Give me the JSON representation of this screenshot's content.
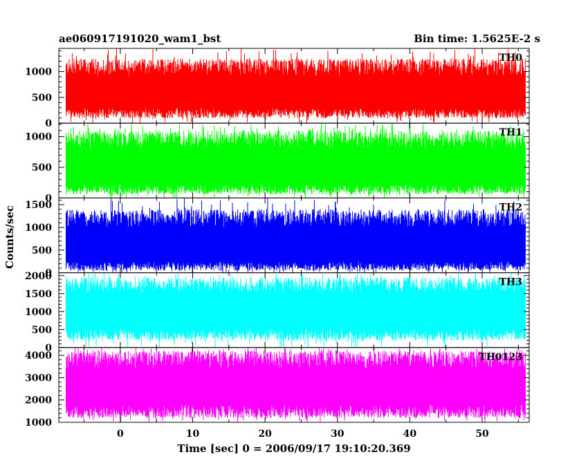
{
  "chart_data": {
    "type": "line",
    "title": "ae060917191020_wam1_bst",
    "subtitle": "Bin time: 1.5625E-2 s",
    "xlabel": "Time [sec] 0 = 2006/09/17 19:10:20.369",
    "ylabel": "Counts/sec",
    "xlim": [
      -8.5,
      56.5
    ],
    "x_ticks": [
      0,
      10,
      20,
      30,
      40,
      50
    ],
    "x_tick_labels": [
      "0",
      "10",
      "20",
      "30",
      "40",
      "50"
    ],
    "data_x_range": [
      -7.5,
      56
    ],
    "bin_time": 0.015625,
    "grid": false,
    "series": [
      {
        "name": "TH0",
        "color": "#ff0000",
        "ylim": [
          0,
          1450
        ],
        "y_ticks": [
          0,
          500,
          1000
        ],
        "y_tick_labels": [
          "0",
          "500",
          "1000"
        ],
        "base_typical": [
          100,
          300
        ],
        "base_min": 0,
        "peak_typical": [
          900,
          1250
        ],
        "peak_max": 1450,
        "mean": 580
      },
      {
        "name": "TH1",
        "color": "#00ff00",
        "ylim": [
          0,
          1220
        ],
        "y_ticks": [
          0,
          500,
          1000
        ],
        "y_tick_labels": [
          "0",
          "500",
          "1000"
        ],
        "base_typical": [
          60,
          230
        ],
        "base_min": 0,
        "peak_typical": [
          800,
          1100
        ],
        "peak_max": 1220,
        "mean": 540
      },
      {
        "name": "TH2",
        "color": "#0000ff",
        "ylim": [
          0,
          1650
        ],
        "y_ticks": [
          0,
          500,
          1000,
          1500
        ],
        "y_tick_labels": [
          "0",
          "500",
          "1000",
          "1500"
        ],
        "base_typical": [
          50,
          250
        ],
        "base_min": 0,
        "peak_typical": [
          1000,
          1400
        ],
        "peak_max": 1650,
        "mean": 680
      },
      {
        "name": "TH3",
        "color": "#00ffff",
        "ylim": [
          0,
          2080
        ],
        "y_ticks": [
          0,
          500,
          1000,
          1500,
          2000
        ],
        "y_tick_labels": [
          "0",
          "500",
          "1000",
          "1500",
          "2000"
        ],
        "base_typical": [
          200,
          550
        ],
        "base_min": 0,
        "peak_typical": [
          1500,
          1950
        ],
        "peak_max": 2080,
        "mean": 1150
      },
      {
        "name": "TH0123",
        "color": "#ff00ff",
        "ylim": [
          1000,
          4350
        ],
        "y_ticks": [
          1000,
          2000,
          3000,
          4000
        ],
        "y_tick_labels": [
          "1000",
          "2000",
          "3000",
          "4000"
        ],
        "base_typical": [
          1200,
          1800
        ],
        "base_min": 1000,
        "peak_typical": [
          3400,
          4200
        ],
        "peak_max": 4350,
        "mean": 2650
      }
    ]
  }
}
